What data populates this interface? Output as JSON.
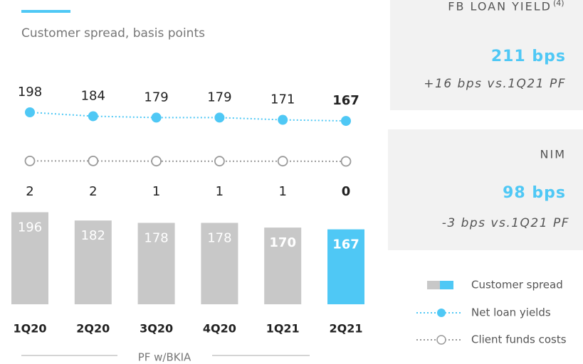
{
  "chart_data": {
    "type": "combo",
    "title": "Customer spread, basis points",
    "x_label": "PF w/BKIA",
    "categories": [
      "1Q20",
      "2Q20",
      "3Q20",
      "4Q20",
      "1Q21",
      "2Q21"
    ],
    "series": [
      {
        "name": "Customer spread",
        "type": "bar",
        "colors": [
          "#c8c8c8",
          "#c8c8c8",
          "#c8c8c8",
          "#c8c8c8",
          "#c8c8c8",
          "#4fc8f5"
        ],
        "values": [
          196,
          182,
          178,
          178,
          170,
          167
        ]
      },
      {
        "name": "Net loan yields",
        "type": "line",
        "color": "#4fc8f5",
        "values": [
          198,
          184,
          179,
          179,
          171,
          167
        ]
      },
      {
        "name": "Client funds costs",
        "type": "line",
        "color": "#9a9a9a",
        "values": [
          2,
          2,
          1,
          1,
          1,
          0
        ]
      }
    ]
  },
  "panels": [
    {
      "label": "FB LOAN YIELD",
      "note": "(4)",
      "value": "211 bps",
      "change": "+16 bps vs.1Q21 PF"
    },
    {
      "label": "NIM",
      "value": "98 bps",
      "change": "-3 bps vs.1Q21 PF"
    }
  ]
}
